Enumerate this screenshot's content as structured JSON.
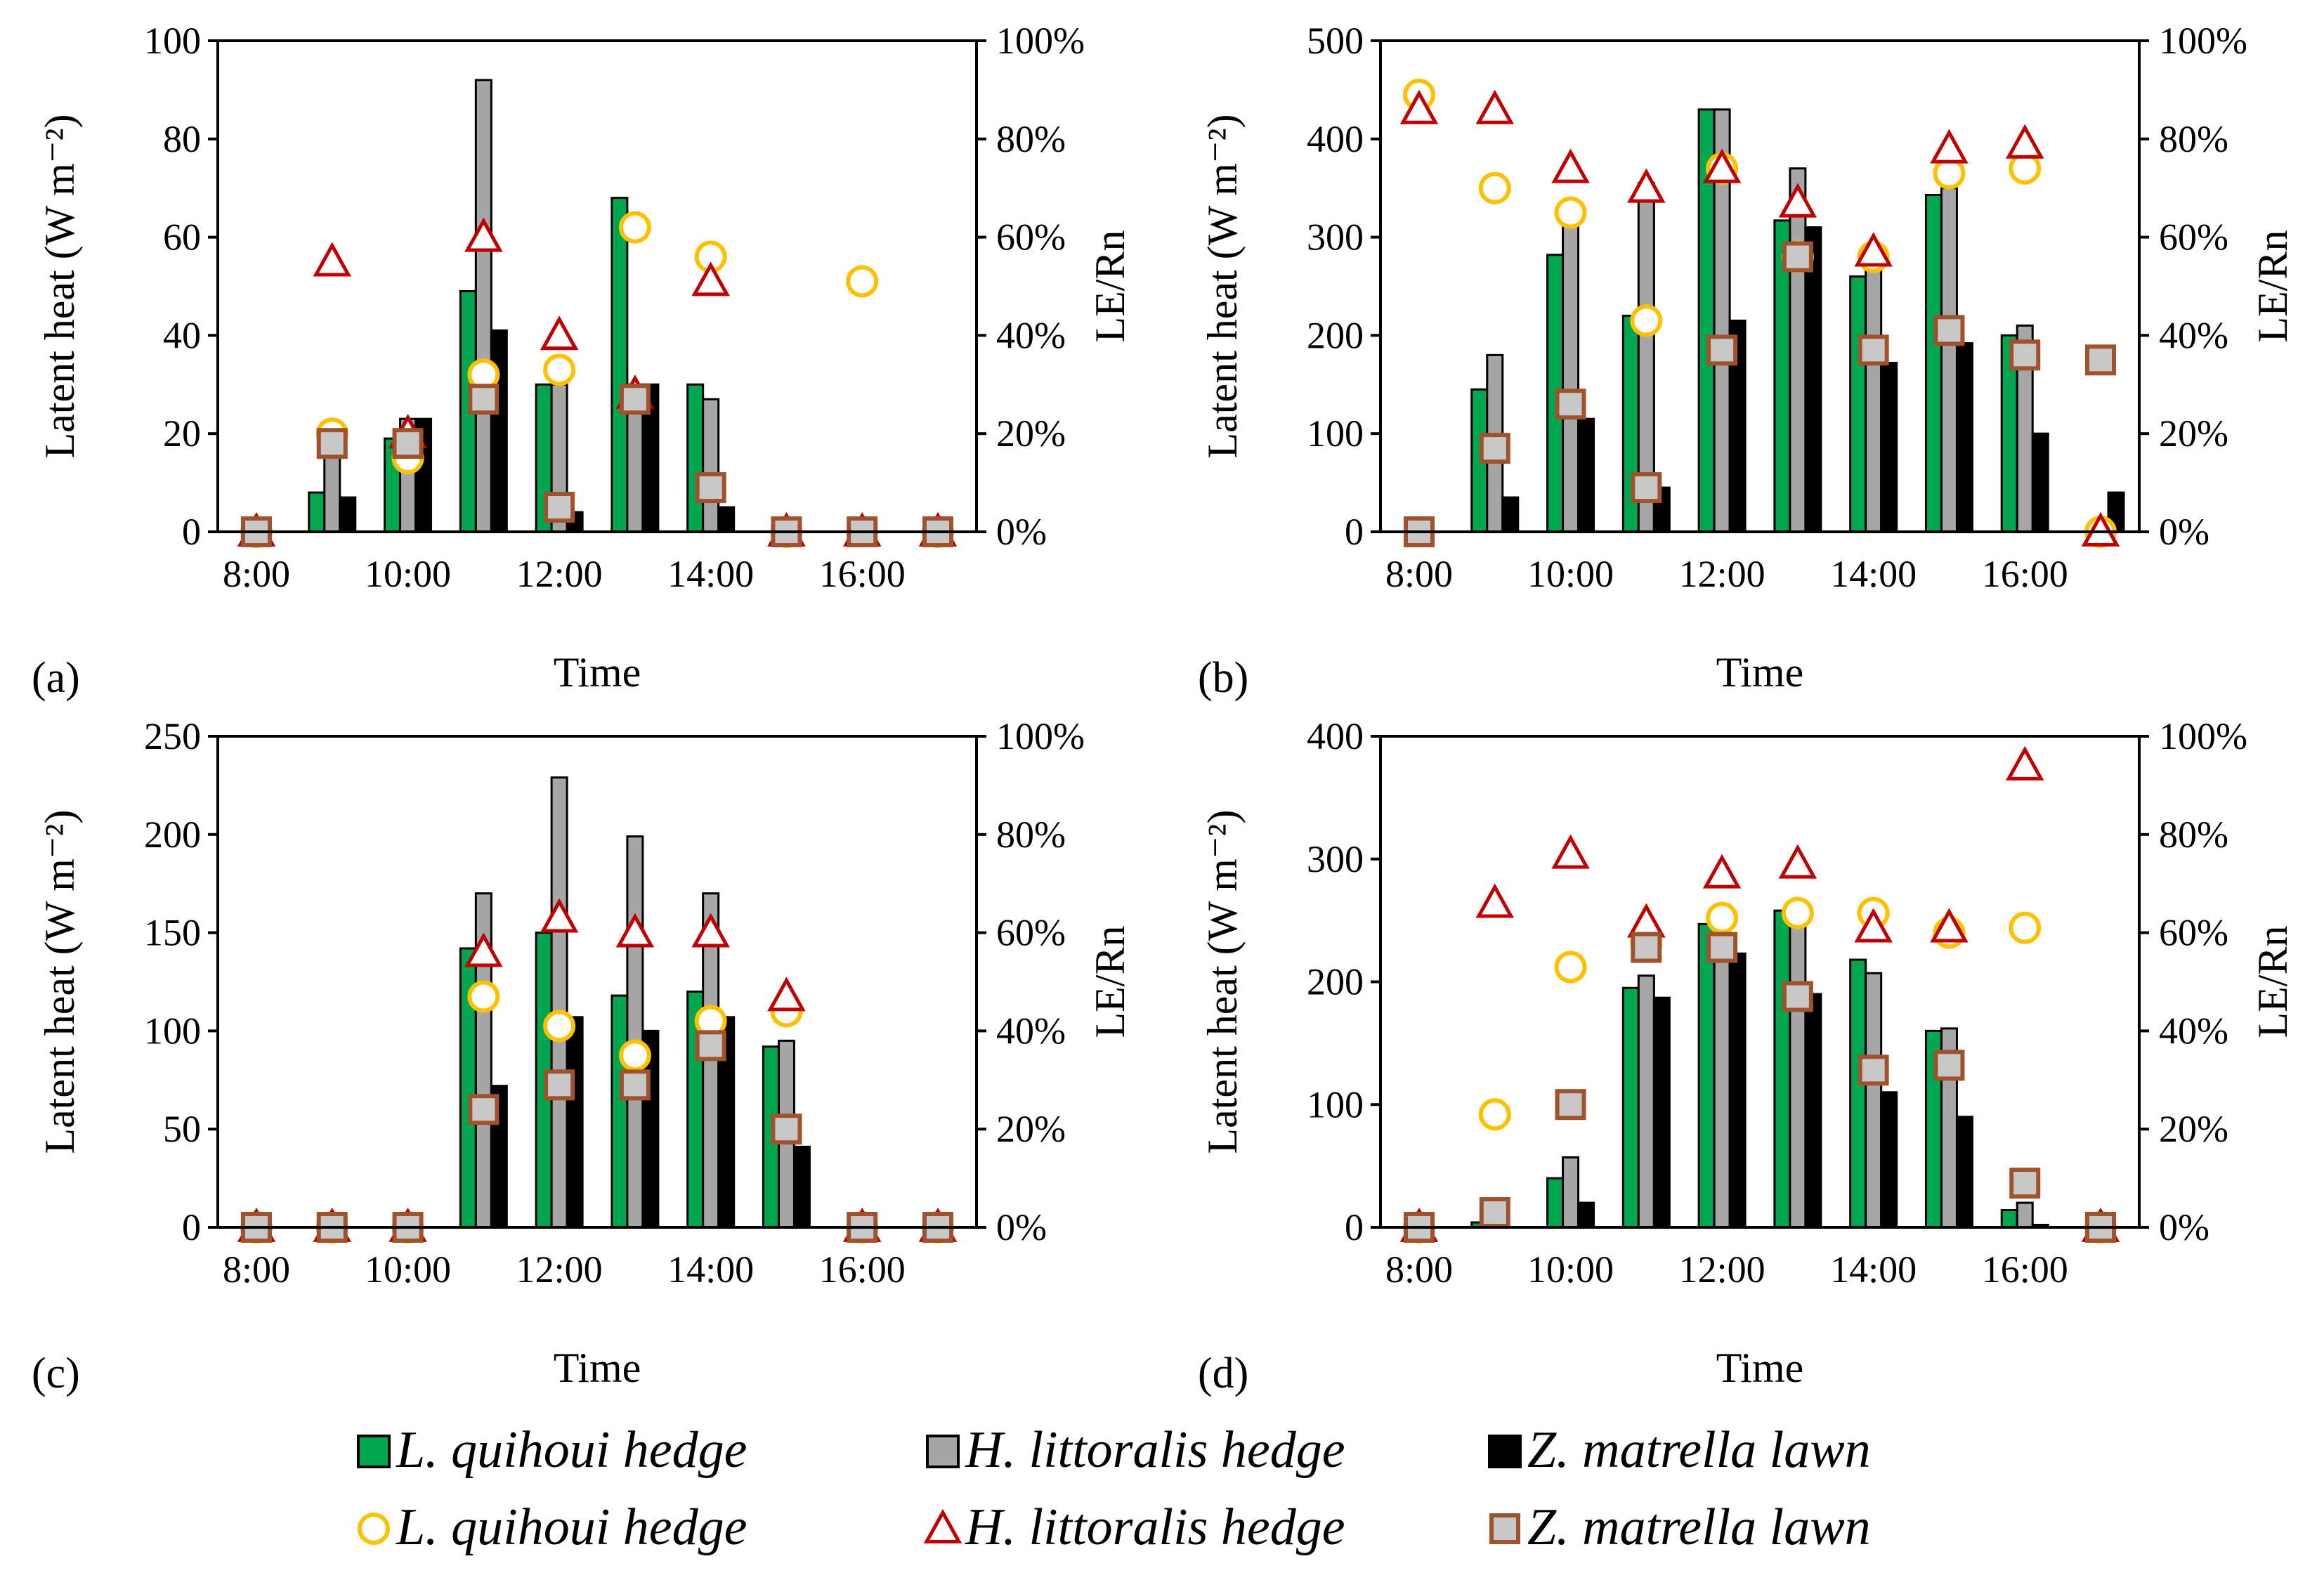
{
  "figure": {
    "legend": {
      "bar_entries": [
        {
          "label": "L. quihoui hedge",
          "color": "#00a650",
          "symbol": "bar"
        },
        {
          "label": "H. littoralis hedge",
          "color": "#a6a6a6",
          "symbol": "bar"
        },
        {
          "label": "Z. matrella lawn",
          "color": "#000000",
          "symbol": "bar"
        }
      ],
      "marker_entries": [
        {
          "label": "L. quihoui hedge",
          "color": "#ffc000",
          "symbol": "circle"
        },
        {
          "label": "H. littoralis hedge",
          "color": "#c00000",
          "symbol": "triangle"
        },
        {
          "label": "Z. matrella lawn",
          "color": "#a0522d",
          "symbol": "square"
        }
      ]
    }
  },
  "chart_data": [
    {
      "panel": "(a)",
      "type": "bar",
      "xlabel": "Time",
      "ylabel": "Latent heat (W m⁻²)",
      "y2label": "LE/Rn",
      "ylim": [
        0,
        100
      ],
      "yticks": [
        0,
        20,
        40,
        60,
        80,
        100
      ],
      "y2lim": [
        0,
        100
      ],
      "y2ticks": [
        "0%",
        "20%",
        "40%",
        "60%",
        "80%",
        "100%"
      ],
      "categories": [
        "8:00",
        "9:00",
        "10:00",
        "11:00",
        "12:00",
        "13:00",
        "14:00",
        "15:00",
        "16:00",
        "17:00"
      ],
      "xtick_labels": [
        "8:00",
        "10:00",
        "12:00",
        "14:00",
        "16:00"
      ],
      "series": [
        {
          "name": "L. quihoui hedge",
          "kind": "bar",
          "values": [
            0,
            8,
            19,
            49,
            30,
            68,
            30,
            0,
            0,
            0
          ]
        },
        {
          "name": "H. littoralis hedge",
          "kind": "bar",
          "values": [
            0,
            20,
            23,
            92,
            30,
            30,
            27,
            0,
            1,
            0
          ]
        },
        {
          "name": "Z. matrella lawn",
          "kind": "bar",
          "values": [
            0,
            7,
            23,
            41,
            4,
            30,
            5,
            0,
            0,
            0
          ]
        },
        {
          "name": "L. quihoui hedge",
          "kind": "circle",
          "axis": "right",
          "values": [
            0,
            20,
            15,
            32,
            33,
            62,
            56,
            0,
            51,
            0
          ]
        },
        {
          "name": "H. littoralis hedge",
          "kind": "triangle",
          "axis": "right",
          "values": [
            0,
            55,
            20,
            60,
            40,
            28,
            51,
            0,
            0,
            0
          ]
        },
        {
          "name": "Z. matrella lawn",
          "kind": "square",
          "axis": "right",
          "values": [
            0,
            18,
            18,
            27,
            5,
            27,
            9,
            0,
            0,
            0
          ]
        }
      ]
    },
    {
      "panel": "(b)",
      "type": "bar",
      "xlabel": "Time",
      "ylabel": "Latent heat (W m⁻²)",
      "y2label": "LE/Rn",
      "ylim": [
        0,
        500
      ],
      "yticks": [
        0,
        100,
        200,
        300,
        400,
        500
      ],
      "y2lim": [
        0,
        100
      ],
      "y2ticks": [
        "0%",
        "20%",
        "40%",
        "60%",
        "80%",
        "100%"
      ],
      "categories": [
        "8:00",
        "9:00",
        "10:00",
        "11:00",
        "12:00",
        "13:00",
        "14:00",
        "15:00",
        "16:00",
        "17:00"
      ],
      "xtick_labels": [
        "8:00",
        "10:00",
        "12:00",
        "14:00",
        "16:00"
      ],
      "series": [
        {
          "name": "L. quihoui hedge",
          "kind": "bar",
          "values": [
            0,
            145,
            282,
            220,
            430,
            317,
            260,
            343,
            200,
            0
          ]
        },
        {
          "name": "H. littoralis hedge",
          "kind": "bar",
          "values": [
            0,
            180,
            330,
            355,
            430,
            370,
            275,
            350,
            210,
            0
          ]
        },
        {
          "name": "Z. matrella lawn",
          "kind": "bar",
          "values": [
            0,
            35,
            115,
            45,
            215,
            310,
            172,
            192,
            100,
            40
          ]
        },
        {
          "name": "L. quihoui hedge",
          "kind": "circle",
          "axis": "right",
          "values": [
            89,
            70,
            65,
            43,
            74,
            56,
            56,
            73,
            74,
            0
          ]
        },
        {
          "name": "H. littoralis hedge",
          "kind": "triangle",
          "axis": "right",
          "values": [
            86,
            86,
            74,
            70,
            74,
            67,
            57,
            78,
            79,
            0
          ]
        },
        {
          "name": "Z. matrella lawn",
          "kind": "square",
          "axis": "right",
          "values": [
            0,
            17,
            26,
            9,
            37,
            56,
            37,
            41,
            36,
            35
          ]
        }
      ]
    },
    {
      "panel": "(c)",
      "type": "bar",
      "xlabel": "Time",
      "ylabel": "Latent heat (W m⁻²)",
      "y2label": "LE/Rn",
      "ylim": [
        0,
        250
      ],
      "yticks": [
        0,
        50,
        100,
        150,
        200,
        250
      ],
      "y2lim": [
        0,
        100
      ],
      "y2ticks": [
        "0%",
        "20%",
        "40%",
        "60%",
        "80%",
        "100%"
      ],
      "categories": [
        "8:00",
        "9:00",
        "10:00",
        "11:00",
        "12:00",
        "13:00",
        "14:00",
        "15:00",
        "16:00",
        "17:00"
      ],
      "xtick_labels": [
        "8:00",
        "10:00",
        "12:00",
        "14:00",
        "16:00"
      ],
      "series": [
        {
          "name": "L. quihoui hedge",
          "kind": "bar",
          "values": [
            0,
            0,
            0,
            142,
            150,
            118,
            120,
            92,
            0,
            0
          ]
        },
        {
          "name": "H. littoralis hedge",
          "kind": "bar",
          "values": [
            0,
            0,
            0,
            170,
            229,
            199,
            170,
            95,
            0,
            0
          ]
        },
        {
          "name": "Z. matrella lawn",
          "kind": "bar",
          "values": [
            0,
            0,
            0,
            72,
            107,
            100,
            107,
            41,
            0,
            0
          ]
        },
        {
          "name": "L. quihoui hedge",
          "kind": "circle",
          "axis": "right",
          "values": [
            0,
            0,
            0,
            47,
            41,
            35,
            42,
            44,
            0,
            0
          ]
        },
        {
          "name": "H. littoralis hedge",
          "kind": "triangle",
          "axis": "right",
          "values": [
            0,
            0,
            0,
            56,
            63,
            60,
            60,
            47,
            0,
            0
          ]
        },
        {
          "name": "Z. matrella lawn",
          "kind": "square",
          "axis": "right",
          "values": [
            0,
            0,
            0,
            24,
            29,
            29,
            37,
            20,
            0,
            0
          ]
        }
      ]
    },
    {
      "panel": "(d)",
      "type": "bar",
      "xlabel": "Time",
      "ylabel": "Latent heat (W m⁻²)",
      "y2label": "LE/Rn",
      "ylim": [
        0,
        400
      ],
      "yticks": [
        0,
        100,
        200,
        300,
        400
      ],
      "y2lim": [
        0,
        100
      ],
      "y2ticks": [
        "0%",
        "20%",
        "40%",
        "60%",
        "80%",
        "100%"
      ],
      "categories": [
        "8:00",
        "9:00",
        "10:00",
        "11:00",
        "12:00",
        "13:00",
        "14:00",
        "15:00",
        "16:00",
        "17:00"
      ],
      "xtick_labels": [
        "8:00",
        "10:00",
        "12:00",
        "14:00",
        "16:00"
      ],
      "series": [
        {
          "name": "L. quihoui hedge",
          "kind": "bar",
          "values": [
            0,
            4,
            40,
            195,
            247,
            258,
            218,
            160,
            14,
            0
          ]
        },
        {
          "name": "H. littoralis hedge",
          "kind": "bar",
          "values": [
            0,
            8,
            57,
            205,
            250,
            262,
            207,
            162,
            20,
            0
          ]
        },
        {
          "name": "Z. matrella lawn",
          "kind": "bar",
          "values": [
            0,
            0,
            20,
            187,
            223,
            190,
            110,
            90,
            2,
            0
          ]
        },
        {
          "name": "L. quihoui hedge",
          "kind": "circle",
          "axis": "right",
          "values": [
            0,
            23,
            53,
            58,
            63,
            64,
            64,
            60,
            61,
            0
          ]
        },
        {
          "name": "H. littoralis hedge",
          "kind": "triangle",
          "axis": "right",
          "values": [
            0,
            66,
            76,
            62,
            72,
            74,
            61,
            61,
            94,
            0
          ]
        },
        {
          "name": "Z. matrella lawn",
          "kind": "square",
          "axis": "right",
          "values": [
            0,
            3,
            25,
            57,
            57,
            47,
            32,
            33,
            9,
            0
          ]
        }
      ]
    }
  ]
}
